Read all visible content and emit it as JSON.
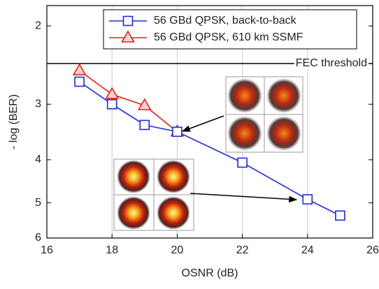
{
  "chart_data": {
    "type": "line",
    "xlabel": "OSNR (dB)",
    "ylabel": "- log (BER)",
    "xlim": [
      16,
      26
    ],
    "xticks": [
      16,
      18,
      20,
      22,
      24,
      26
    ],
    "ylim": [
      1.8,
      6
    ],
    "yticks": [
      2,
      3,
      4,
      5,
      6
    ],
    "ylog": true,
    "yreverse": true,
    "grid": "x",
    "legend": "top",
    "threshold": {
      "label": "FEC threshold",
      "value": 2.43
    },
    "series": [
      {
        "name": "56 GBd QPSK, back-to-back",
        "color": "#1f2bd6",
        "marker": "square",
        "x": [
          17,
          18,
          19,
          20,
          22,
          24,
          25
        ],
        "values": [
          2.67,
          3.0,
          3.34,
          3.46,
          4.06,
          4.91,
          5.34
        ]
      },
      {
        "name": "56 GBd QPSK, 610 km SSMF",
        "color": "#e3201c",
        "marker": "triangle",
        "x": [
          17,
          18,
          19,
          20
        ],
        "values": [
          2.52,
          2.85,
          3.02,
          3.46
        ]
      }
    ]
  }
}
